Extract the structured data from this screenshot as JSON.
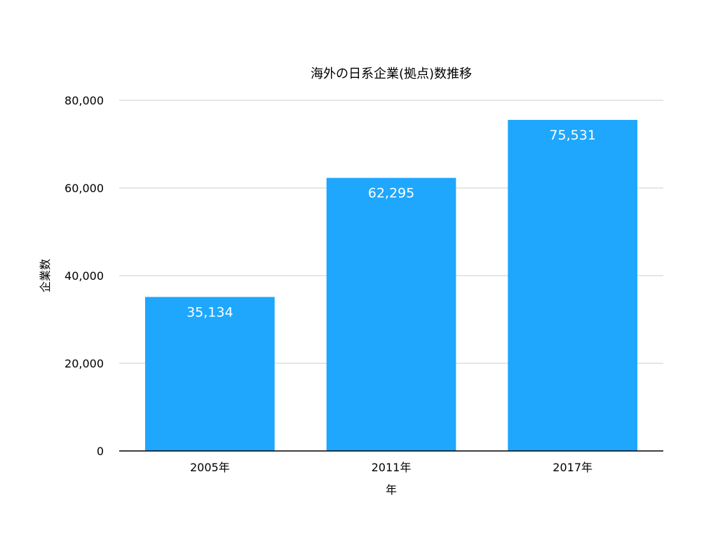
{
  "chart_data": {
    "type": "bar",
    "title": "海外の日系企業(拠点)数推移",
    "xlabel": "年",
    "ylabel": "企業数",
    "categories": [
      "2005年",
      "2011年",
      "2017年"
    ],
    "values": [
      35134,
      62295,
      75531
    ],
    "data_labels": [
      "35,134",
      "62,295",
      "75,531"
    ],
    "ylim": [
      0,
      80000
    ],
    "yticks": [
      0,
      20000,
      40000,
      60000,
      80000
    ],
    "ytick_labels": [
      "0",
      "20,000",
      "40,000",
      "60,000",
      "80,000"
    ],
    "grid": true,
    "legend": "none",
    "colors": {
      "bar": "#1ea7fd",
      "grid": "#cccccc",
      "axis": "#000000",
      "text": "#000000",
      "data_label": "#ffffff"
    }
  }
}
